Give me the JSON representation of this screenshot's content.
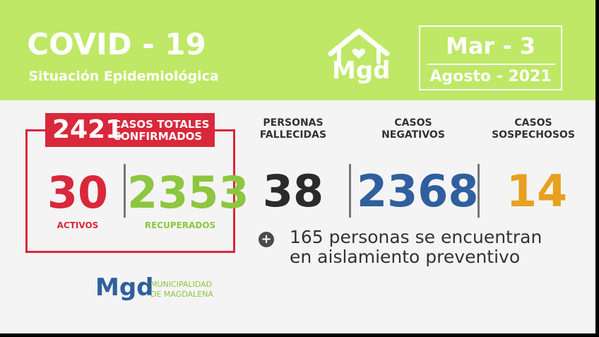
{
  "header": {
    "title": "COVID - 19",
    "subtitle": "Situación Epidemiológica",
    "logo_text": "Mgd",
    "date": {
      "line1": "Mar - 3",
      "line2": "Agosto - 2021"
    }
  },
  "totals": {
    "total": "2421",
    "total_label_line1": "CASOS TOTALES",
    "total_label_line2": "CONFIRMADOS",
    "activos": {
      "value": "30",
      "label": "ACTIVOS"
    },
    "recuperados": {
      "value": "2353",
      "label": "RECUPERADOS"
    }
  },
  "stats": {
    "fallecidas": {
      "head1": "PERSONAS",
      "head2": "FALLECIDAS",
      "value": "38"
    },
    "negativos": {
      "head1": "CASOS",
      "head2": "NEGATIVOS",
      "value": "2368"
    },
    "sospechosos": {
      "head1": "CASOS",
      "head2": "SOSPECHOSOS",
      "value": "14"
    }
  },
  "note": {
    "line1": "165 personas se encuentran",
    "line2": "en aislamiento preventivo",
    "icon": "plus-circle-icon"
  },
  "footer": {
    "logo_text": "Mgd",
    "muni_line1": "MUNICIPALIDAD",
    "muni_line2": "DE MAGDALENA"
  },
  "colors": {
    "header_bg": "#bfe866",
    "red": "#d9283b",
    "green": "#8dc63f",
    "blue": "#2f5f9e",
    "orange": "#e8a020",
    "dark": "#2b2b2b"
  }
}
